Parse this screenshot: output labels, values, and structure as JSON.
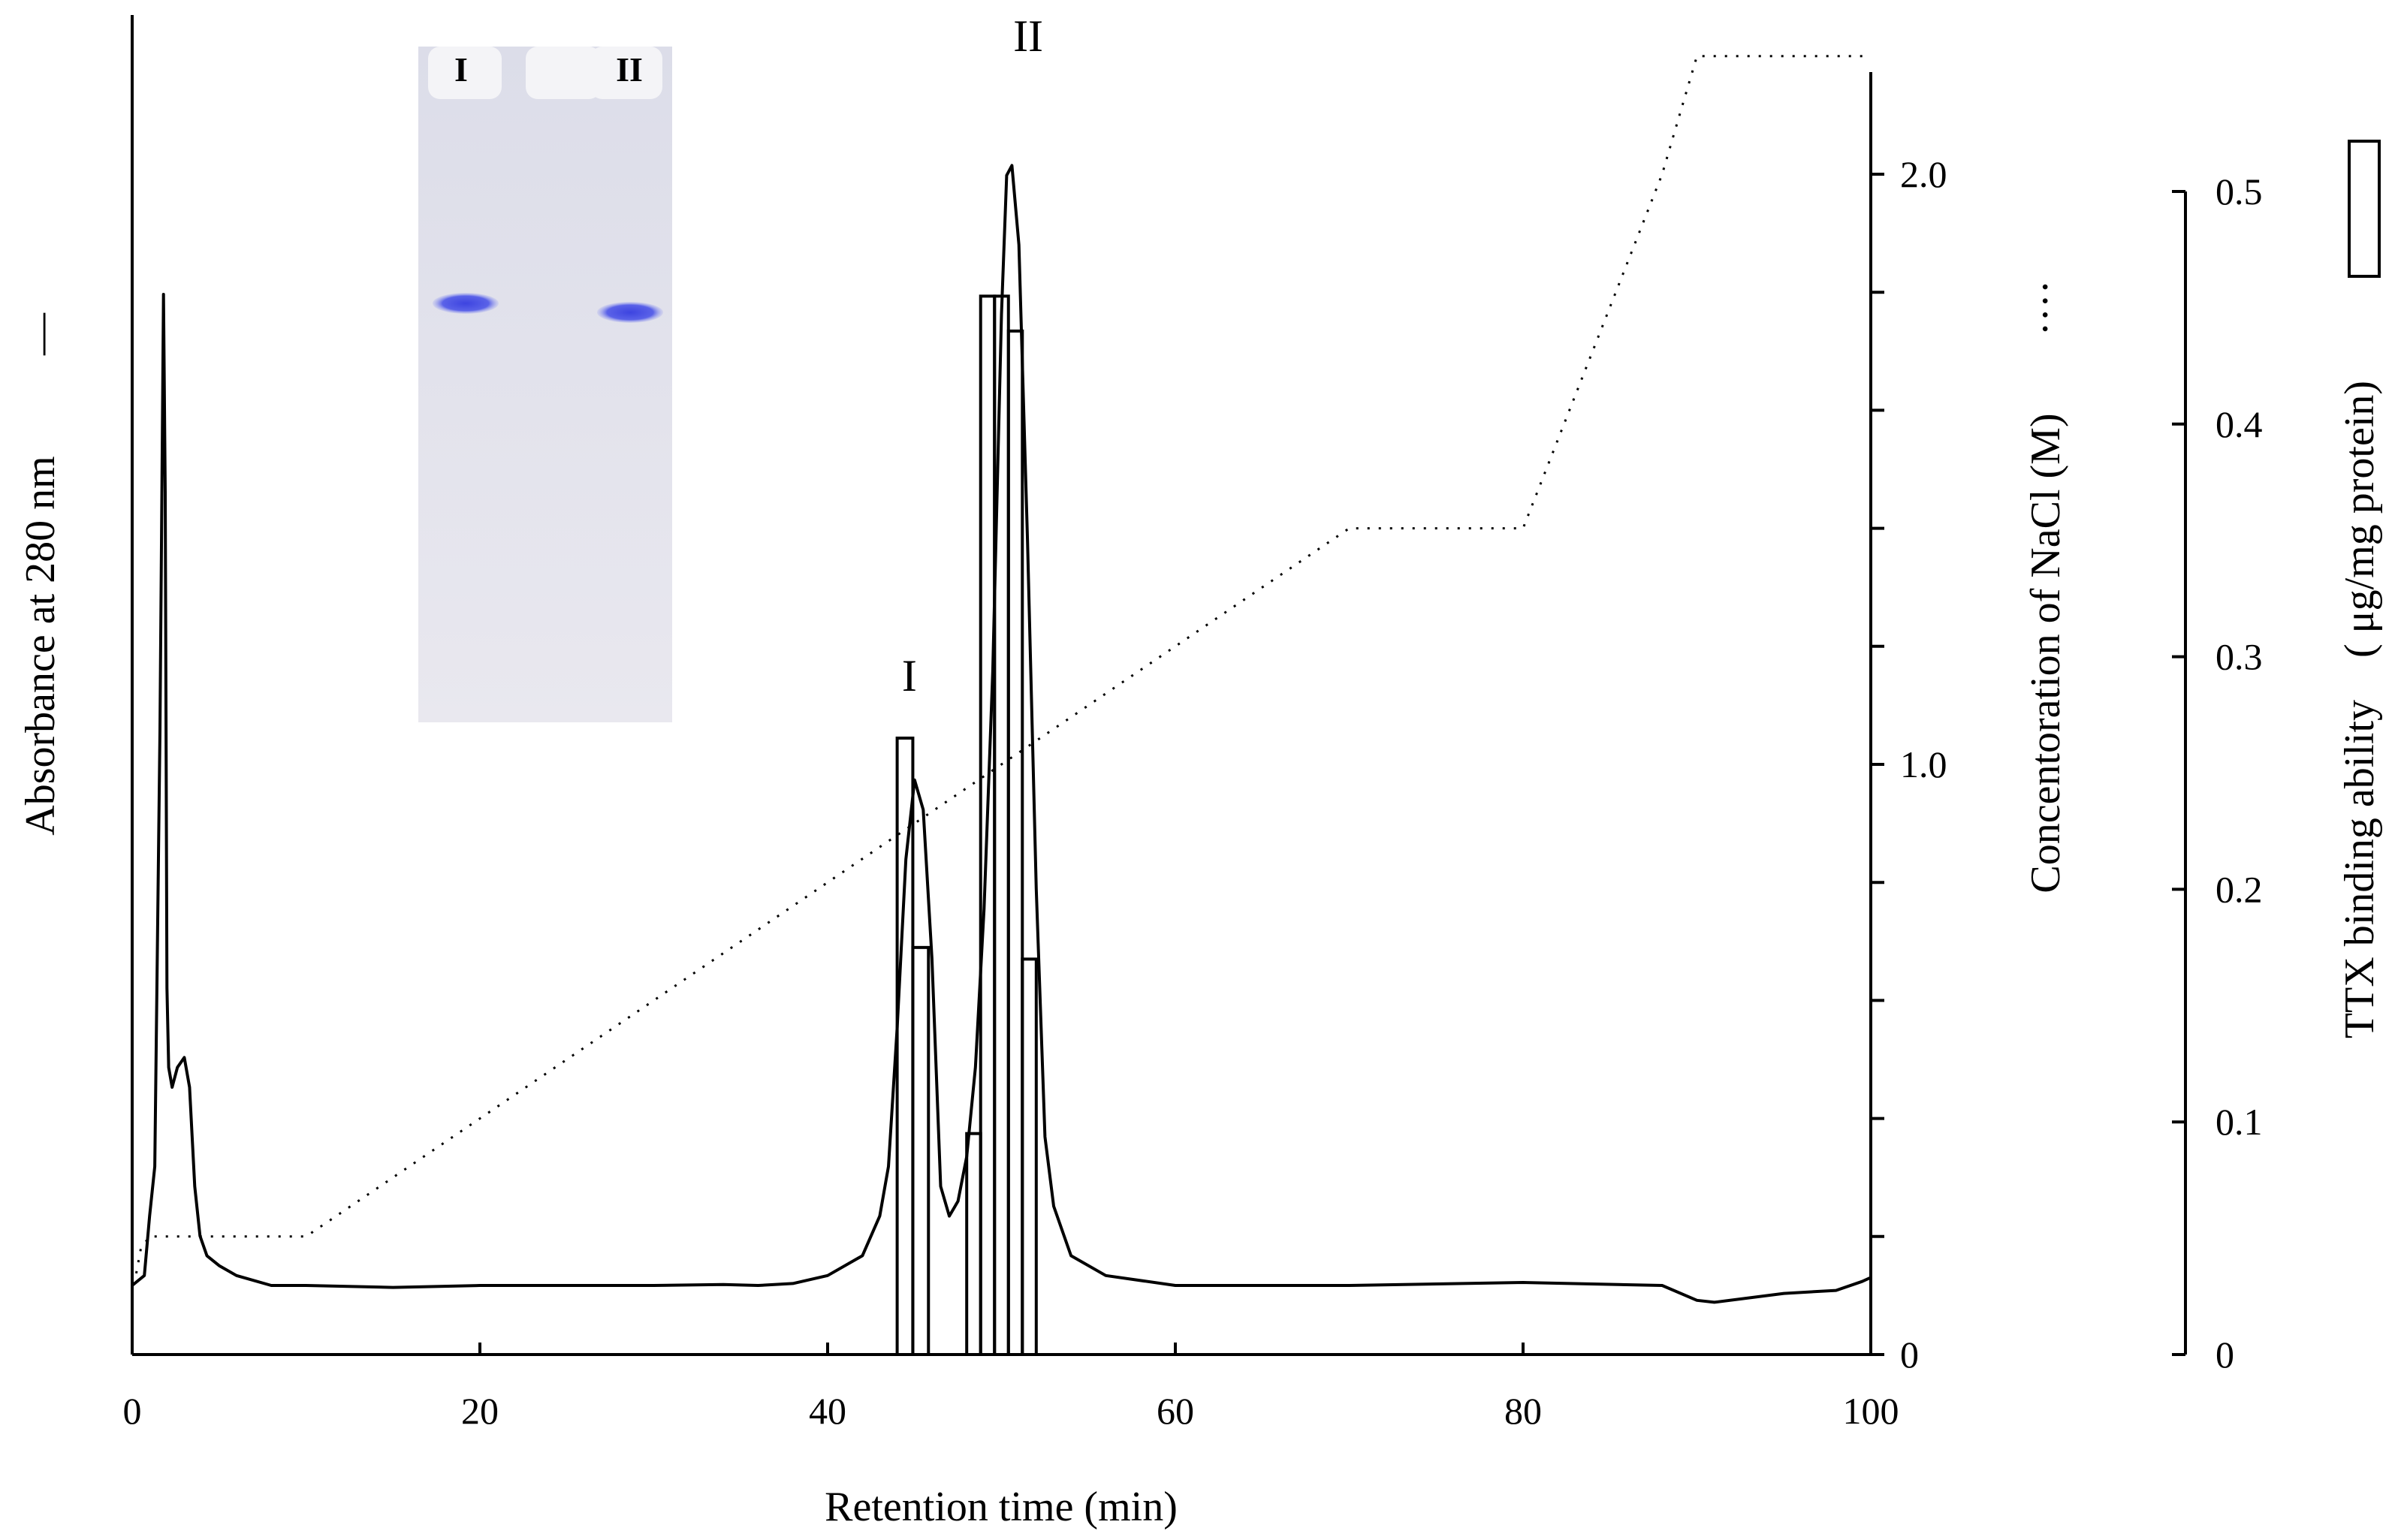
{
  "chart_data": {
    "type": "line",
    "title": "",
    "xlabel": "Retention time (min)",
    "ylabel_left": "Absorbance at 280 nm",
    "ylabel_right1": "Concentoration of NaCl (M)",
    "ylabel_right2": "TTX binding ability　( μg/mg protein)",
    "xlim": [
      0,
      100
    ],
    "x_ticks": [
      "0",
      "20",
      "40",
      "60",
      "80",
      "100"
    ],
    "nacl_ylim": [
      0,
      2.2
    ],
    "nacl_ticks": [
      "0",
      "1.0",
      "2.0"
    ],
    "ttx_ylim": [
      0,
      0.5
    ],
    "ttx_ticks": [
      "0",
      "0.1",
      "0.2",
      "0.3",
      "0.4",
      "0.5"
    ],
    "legend": {
      "absorbance": "—",
      "nacl": "····"
    },
    "peak_labels": [
      {
        "text": "I",
        "x": 44.7
      },
      {
        "text": "II",
        "x": 50.5
      }
    ],
    "series": [
      {
        "style": "solid",
        "axis": "relative",
        "x": [
          0,
          0.7,
          1.0,
          1.3,
          1.6,
          1.8,
          1.9,
          2.0,
          2.1,
          2.3,
          2.6,
          3.0,
          3.3,
          3.6,
          3.9,
          4.3,
          5,
          6,
          8,
          10,
          15,
          20,
          25,
          30,
          34,
          36,
          38,
          40,
          42,
          43,
          43.5,
          44.0,
          44.5,
          45.0,
          45.5,
          46.0,
          46.5,
          47.0,
          47.5,
          48.0,
          48.5,
          49.0,
          49.5,
          50.0,
          50.3,
          50.6,
          51.0,
          51.5,
          52.0,
          52.5,
          53.0,
          54,
          56,
          60,
          70,
          80,
          88,
          90,
          91,
          95,
          98,
          99.5,
          100
        ],
        "values": [
          0.0,
          0.01,
          0.07,
          0.12,
          0.56,
          1.0,
          0.8,
          0.3,
          0.22,
          0.2,
          0.22,
          0.23,
          0.2,
          0.1,
          0.05,
          0.03,
          0.02,
          0.01,
          0.0,
          0.0,
          -0.002,
          0.0,
          0.0,
          0.0,
          0.001,
          0.0,
          0.002,
          0.01,
          0.03,
          0.07,
          0.12,
          0.26,
          0.43,
          0.51,
          0.48,
          0.33,
          0.1,
          0.07,
          0.085,
          0.13,
          0.22,
          0.38,
          0.62,
          0.98,
          1.12,
          1.13,
          1.05,
          0.75,
          0.4,
          0.15,
          0.08,
          0.03,
          0.01,
          0.0,
          0.0,
          0.003,
          0.0,
          -0.015,
          -0.017,
          -0.008,
          -0.005,
          0.004,
          0.008
        ]
      },
      {
        "style": "dotted",
        "axis": "nacl",
        "x": [
          0,
          0.5,
          1,
          10,
          20,
          30,
          40,
          50,
          60,
          70,
          80,
          88,
          89,
          90,
          100
        ],
        "values": [
          0.1,
          0.18,
          0.2,
          0.2,
          0.4,
          0.6,
          0.8,
          1.0,
          1.2,
          1.4,
          1.4,
          2.0,
          2.1,
          2.2,
          2.2
        ]
      },
      {
        "style": "bar",
        "axis": "ttx",
        "bars": [
          {
            "x0": 44.0,
            "x1": 44.9,
            "value": 0.265
          },
          {
            "x0": 44.9,
            "x1": 45.8,
            "value": 0.175
          },
          {
            "x0": 48.0,
            "x1": 48.8,
            "value": 0.095
          },
          {
            "x0": 48.8,
            "x1": 49.6,
            "value": 0.455
          },
          {
            "x0": 49.6,
            "x1": 50.4,
            "value": 0.455
          },
          {
            "x0": 50.4,
            "x1": 51.2,
            "value": 0.44
          },
          {
            "x0": 51.2,
            "x1": 52.0,
            "value": 0.17
          }
        ]
      }
    ],
    "inset_gel": {
      "lanes": [
        "I",
        "II"
      ]
    }
  }
}
